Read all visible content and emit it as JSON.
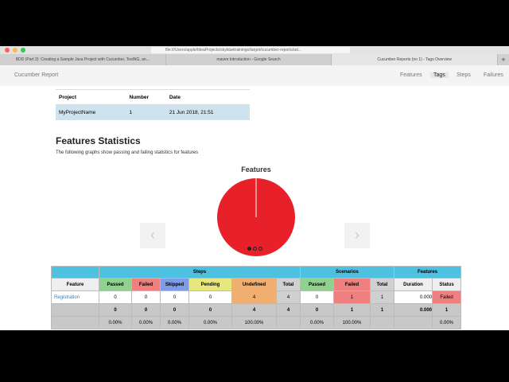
{
  "browser": {
    "url": "file:///Users/apple/IdeaProjects/skybluetrainings/target/cucumber-reports/ad...",
    "tabs": [
      "BDD (Part 2): Creating a Sample Java Project with Cucumber, TestNG, an...",
      "maven Introduction - Google Search",
      "Cucumber Reports (no 1) - Tags Overview"
    ],
    "new_tab": "+"
  },
  "nav": {
    "brand": "Cucumber Report",
    "items": [
      "Features",
      "Tags",
      "Steps",
      "Failures"
    ],
    "active": "Tags"
  },
  "project_table": {
    "headers": [
      "Project",
      "Number",
      "Date"
    ],
    "rows": [
      [
        "MyProjectName",
        "1",
        "21 Jun 2018, 21:51"
      ]
    ]
  },
  "section": {
    "title": "Features Statistics",
    "subtitle": "The following graphs show passing and failing statistics for features"
  },
  "chart_data": {
    "type": "pie",
    "title": "Features",
    "categories": [
      "Failed"
    ],
    "values": [
      1
    ],
    "colors": [
      "#e8202a"
    ]
  },
  "colors": {
    "failed": "#e8202a",
    "header": "#4ec0e0"
  },
  "stats": {
    "groups": [
      "Steps",
      "Scenarios",
      "Features"
    ],
    "headers": [
      "Feature",
      "Passed",
      "Failed",
      "Skipped",
      "Pending",
      "Undefined",
      "Total",
      "Passed",
      "Failed",
      "Total",
      "Duration",
      "Status"
    ],
    "rows": [
      [
        "Registration",
        "0",
        "0",
        "0",
        "0",
        "4",
        "4",
        "0",
        "1",
        "1",
        "0.000",
        "Failed"
      ]
    ],
    "totals": [
      "",
      "0",
      "0",
      "0",
      "0",
      "4",
      "4",
      "0",
      "1",
      "1",
      "0.000",
      "1"
    ],
    "percents": [
      "",
      "0.00%",
      "0.00%",
      "0.00%",
      "0.00%",
      "100.00%",
      "",
      "0.00%",
      "100.00%",
      "",
      "",
      "0.00%"
    ]
  }
}
